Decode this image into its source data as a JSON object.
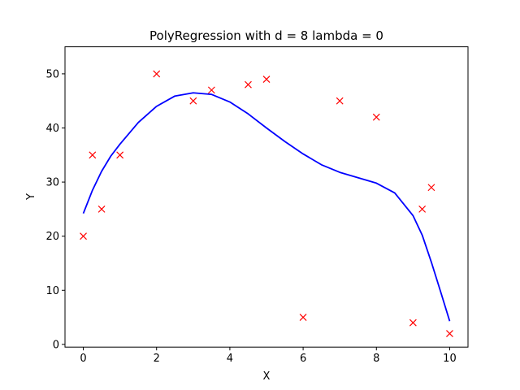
{
  "chart_data": {
    "type": "scatter",
    "title": "PolyRegression with d = 8  lambda = 0",
    "xlabel": "X",
    "ylabel": "Y",
    "xlim": [
      -0.5,
      10.5
    ],
    "ylim": [
      -0.5,
      55
    ],
    "xticks": [
      0,
      2,
      4,
      6,
      8,
      10
    ],
    "yticks": [
      0,
      10,
      20,
      30,
      40,
      50
    ],
    "grid": false,
    "series": [
      {
        "kind": "points",
        "marker": "x",
        "color": "#ff0000",
        "x": [
          0,
          0.25,
          0.5,
          1,
          2,
          3,
          3.5,
          4.5,
          5,
          6,
          7,
          8,
          9,
          9.25,
          9.5,
          10
        ],
        "y": [
          20,
          35,
          25,
          35,
          50,
          45,
          47,
          48,
          49,
          5,
          45,
          42,
          4,
          25,
          29,
          2
        ]
      },
      {
        "kind": "line",
        "color": "#0000ff",
        "x": [
          0,
          0.25,
          0.5,
          0.75,
          1,
          1.5,
          2,
          2.5,
          3,
          3.5,
          4,
          4.5,
          5,
          5.5,
          6,
          6.5,
          7,
          7.5,
          8,
          8.5,
          9,
          9.25,
          9.5,
          9.75,
          10
        ],
        "y": [
          24.2,
          28.5,
          32,
          34.8,
          37,
          41,
          44,
          45.9,
          46.5,
          46.2,
          44.8,
          42.6,
          40,
          37.5,
          35.2,
          33.2,
          31.8,
          30.8,
          29.8,
          28,
          23.8,
          20.2,
          15.2,
          9.8,
          4.3
        ]
      }
    ]
  }
}
